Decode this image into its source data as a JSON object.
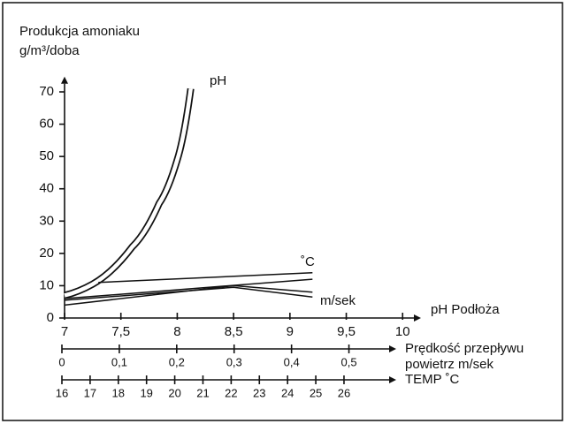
{
  "chart_data": {
    "type": "line",
    "title": [
      "Produkcja amoniaku",
      "g/m³/doba"
    ],
    "ylim": [
      0,
      72
    ],
    "yticks": [
      0,
      10,
      20,
      30,
      40,
      50,
      60,
      70
    ],
    "xlim": [
      7,
      10.1
    ],
    "xlabel": "pH Podłoża",
    "xticks": [
      7,
      {
        "value": 7.5,
        "label": "7,5"
      },
      8,
      {
        "value": 8.5,
        "label": "8,5"
      },
      9,
      {
        "value": 9.5,
        "label": "9,5"
      },
      10
    ],
    "extra_axes": [
      {
        "label": [
          "Prędkość przepływu",
          "powietrz m/sek"
        ],
        "xlim": [
          0,
          0.57
        ],
        "xticks": [
          0,
          {
            "value": 0.1,
            "label": "0,1"
          },
          {
            "value": 0.2,
            "label": "0,2"
          },
          {
            "value": 0.3,
            "label": "0,3"
          },
          {
            "value": 0.4,
            "label": "0,4"
          },
          {
            "value": 0.5,
            "label": "0,5"
          }
        ]
      },
      {
        "label": [
          "TEMP ˚C"
        ],
        "xlim": [
          16,
          27.6
        ],
        "xticks": [
          16,
          17,
          18,
          19,
          20,
          21,
          22,
          23,
          24,
          25,
          26
        ]
      }
    ],
    "series": [
      {
        "name": "pH",
        "color": "#111",
        "double": true,
        "x": [
          7.0,
          7.25,
          7.6,
          7.84,
          8.0,
          8.12
        ],
        "values": [
          7,
          10.5,
          22,
          35.5,
          49,
          71
        ]
      },
      {
        "name": "˚C",
        "color": "#111",
        "x": [
          7.3,
          9.2
        ],
        "values": [
          11,
          14
        ]
      },
      {
        "color": "#111",
        "x": [
          7.0,
          9.2
        ],
        "values": [
          6,
          12
        ]
      },
      {
        "name": "m/sek",
        "color": "#111",
        "x": [
          7.0,
          8.5,
          9.2
        ],
        "values": [
          5.5,
          9.5,
          6.5
        ]
      },
      {
        "color": "#111",
        "x": [
          7.0,
          8.5,
          9.2
        ],
        "values": [
          4,
          10,
          8
        ]
      }
    ]
  }
}
